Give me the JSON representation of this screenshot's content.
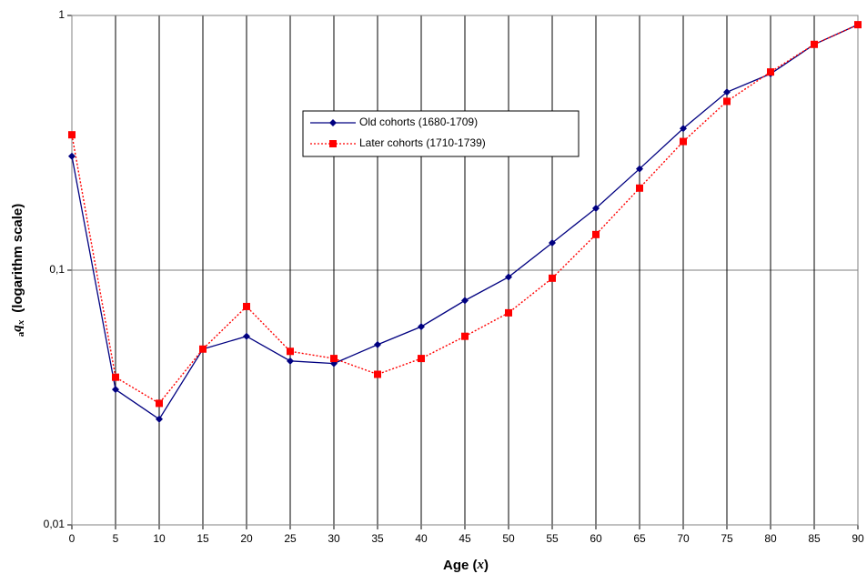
{
  "chart_data": {
    "type": "line",
    "xlabel": [
      "Age (",
      "x",
      ")"
    ],
    "ylabel": [
      "a",
      "q",
      "x",
      "(logarithm scale)"
    ],
    "x": [
      0,
      5,
      10,
      15,
      20,
      25,
      30,
      35,
      40,
      45,
      50,
      55,
      60,
      65,
      70,
      75,
      80,
      85,
      90
    ],
    "series": [
      {
        "name": "Old cohorts (1680-1709)",
        "color": "#000080",
        "marker": "diamond",
        "linestyle": "solid",
        "values": [
          0.28,
          0.034,
          0.026,
          0.049,
          0.055,
          0.044,
          0.043,
          0.051,
          0.06,
          0.076,
          0.094,
          0.128,
          0.175,
          0.25,
          0.36,
          0.5,
          0.59,
          0.77,
          0.92
        ]
      },
      {
        "name": "Later cohorts (1710-1739)",
        "color": "#ff0000",
        "marker": "square",
        "linestyle": "dotted",
        "values": [
          0.34,
          0.038,
          0.03,
          0.049,
          0.072,
          0.048,
          0.045,
          0.039,
          0.045,
          0.055,
          0.068,
          0.093,
          0.138,
          0.21,
          0.32,
          0.46,
          0.6,
          0.77,
          0.92
        ]
      }
    ],
    "xlim": [
      0,
      90
    ],
    "xticks": [
      0,
      5,
      10,
      15,
      20,
      25,
      30,
      35,
      40,
      45,
      50,
      55,
      60,
      65,
      70,
      75,
      80,
      85,
      90
    ],
    "ylim": [
      0.01,
      1
    ],
    "yscale": "log",
    "yticks": [
      {
        "value": 0.01,
        "label": "0,01"
      },
      {
        "value": 0.1,
        "label": "0,1"
      },
      1
    ],
    "grid": true,
    "legend": "upper center"
  }
}
